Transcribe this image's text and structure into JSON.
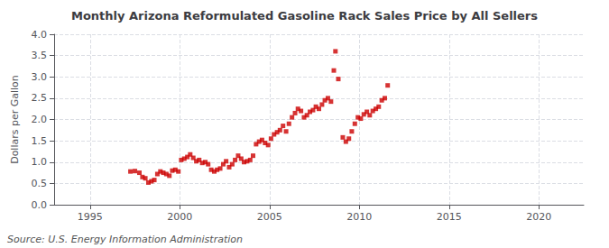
{
  "chart_data": {
    "type": "scatter",
    "title": "Monthly Arizona Reformulated Gasoline Rack Sales Price by All Sellers",
    "ylabel": "Dollars per Gallon",
    "annotations": [
      "Source: U.S. Energy Information Administration"
    ],
    "color": "#cc0000",
    "marker": "square",
    "grid": true,
    "xlim": [
      1993.0,
      2022.5
    ],
    "ylim": [
      0.0,
      4.0
    ],
    "xticks": [
      1995,
      2000,
      2005,
      2010,
      2015,
      2020
    ],
    "yticks": [
      {
        "value": 0.0,
        "label": "0.0"
      },
      0.5,
      {
        "value": 1.0,
        "label": "1.0"
      },
      1.5,
      {
        "value": 2.0,
        "label": "2.0"
      },
      2.5,
      {
        "value": 3.0,
        "label": "3.0"
      },
      3.5,
      {
        "value": 4.0,
        "label": "4.0"
      }
    ],
    "x": [
      1997.25,
      1997.5,
      1997.75,
      1997.92,
      1998.08,
      1998.25,
      1998.42,
      1998.58,
      1998.75,
      1998.92,
      1999.08,
      1999.25,
      1999.42,
      1999.58,
      1999.75,
      1999.92,
      2000.08,
      2000.25,
      2000.42,
      2000.58,
      2000.75,
      2000.92,
      2001.08,
      2001.25,
      2001.42,
      2001.58,
      2001.75,
      2001.92,
      2002.08,
      2002.25,
      2002.42,
      2002.58,
      2002.75,
      2002.92,
      2003.08,
      2003.25,
      2003.42,
      2003.58,
      2003.75,
      2003.92,
      2004.08,
      2004.25,
      2004.42,
      2004.58,
      2004.75,
      2004.92,
      2005.08,
      2005.25,
      2005.42,
      2005.58,
      2005.75,
      2005.92,
      2006.08,
      2006.25,
      2006.42,
      2006.58,
      2006.75,
      2006.92,
      2007.08,
      2007.25,
      2007.42,
      2007.58,
      2007.75,
      2007.92,
      2008.08,
      2008.25,
      2008.42,
      2008.58,
      2008.67,
      2008.83,
      2009.08,
      2009.25,
      2009.42,
      2009.58,
      2009.75,
      2009.92,
      2010.08,
      2010.25,
      2010.42,
      2010.58,
      2010.75,
      2010.92,
      2011.08,
      2011.25,
      2011.42,
      2011.58
    ],
    "values": [
      0.78,
      0.79,
      0.75,
      0.65,
      0.62,
      0.52,
      0.55,
      0.58,
      0.72,
      0.78,
      0.75,
      0.72,
      0.68,
      0.8,
      0.82,
      0.78,
      1.05,
      1.08,
      1.12,
      1.18,
      1.1,
      1.02,
      1.05,
      0.98,
      1.0,
      0.95,
      0.82,
      0.78,
      0.82,
      0.85,
      0.95,
      1.02,
      0.88,
      0.95,
      1.05,
      1.15,
      1.08,
      1.0,
      1.02,
      1.05,
      1.15,
      1.42,
      1.48,
      1.52,
      1.45,
      1.4,
      1.55,
      1.65,
      1.7,
      1.75,
      1.85,
      1.72,
      1.9,
      2.05,
      2.15,
      2.25,
      2.2,
      2.05,
      2.1,
      2.18,
      2.22,
      2.3,
      2.25,
      2.35,
      2.45,
      2.5,
      2.42,
      3.15,
      3.6,
      2.95,
      1.58,
      1.48,
      1.55,
      1.72,
      1.9,
      2.05,
      2.02,
      2.12,
      2.18,
      2.1,
      2.2,
      2.25,
      2.3,
      2.45,
      2.5,
      2.8
    ]
  }
}
